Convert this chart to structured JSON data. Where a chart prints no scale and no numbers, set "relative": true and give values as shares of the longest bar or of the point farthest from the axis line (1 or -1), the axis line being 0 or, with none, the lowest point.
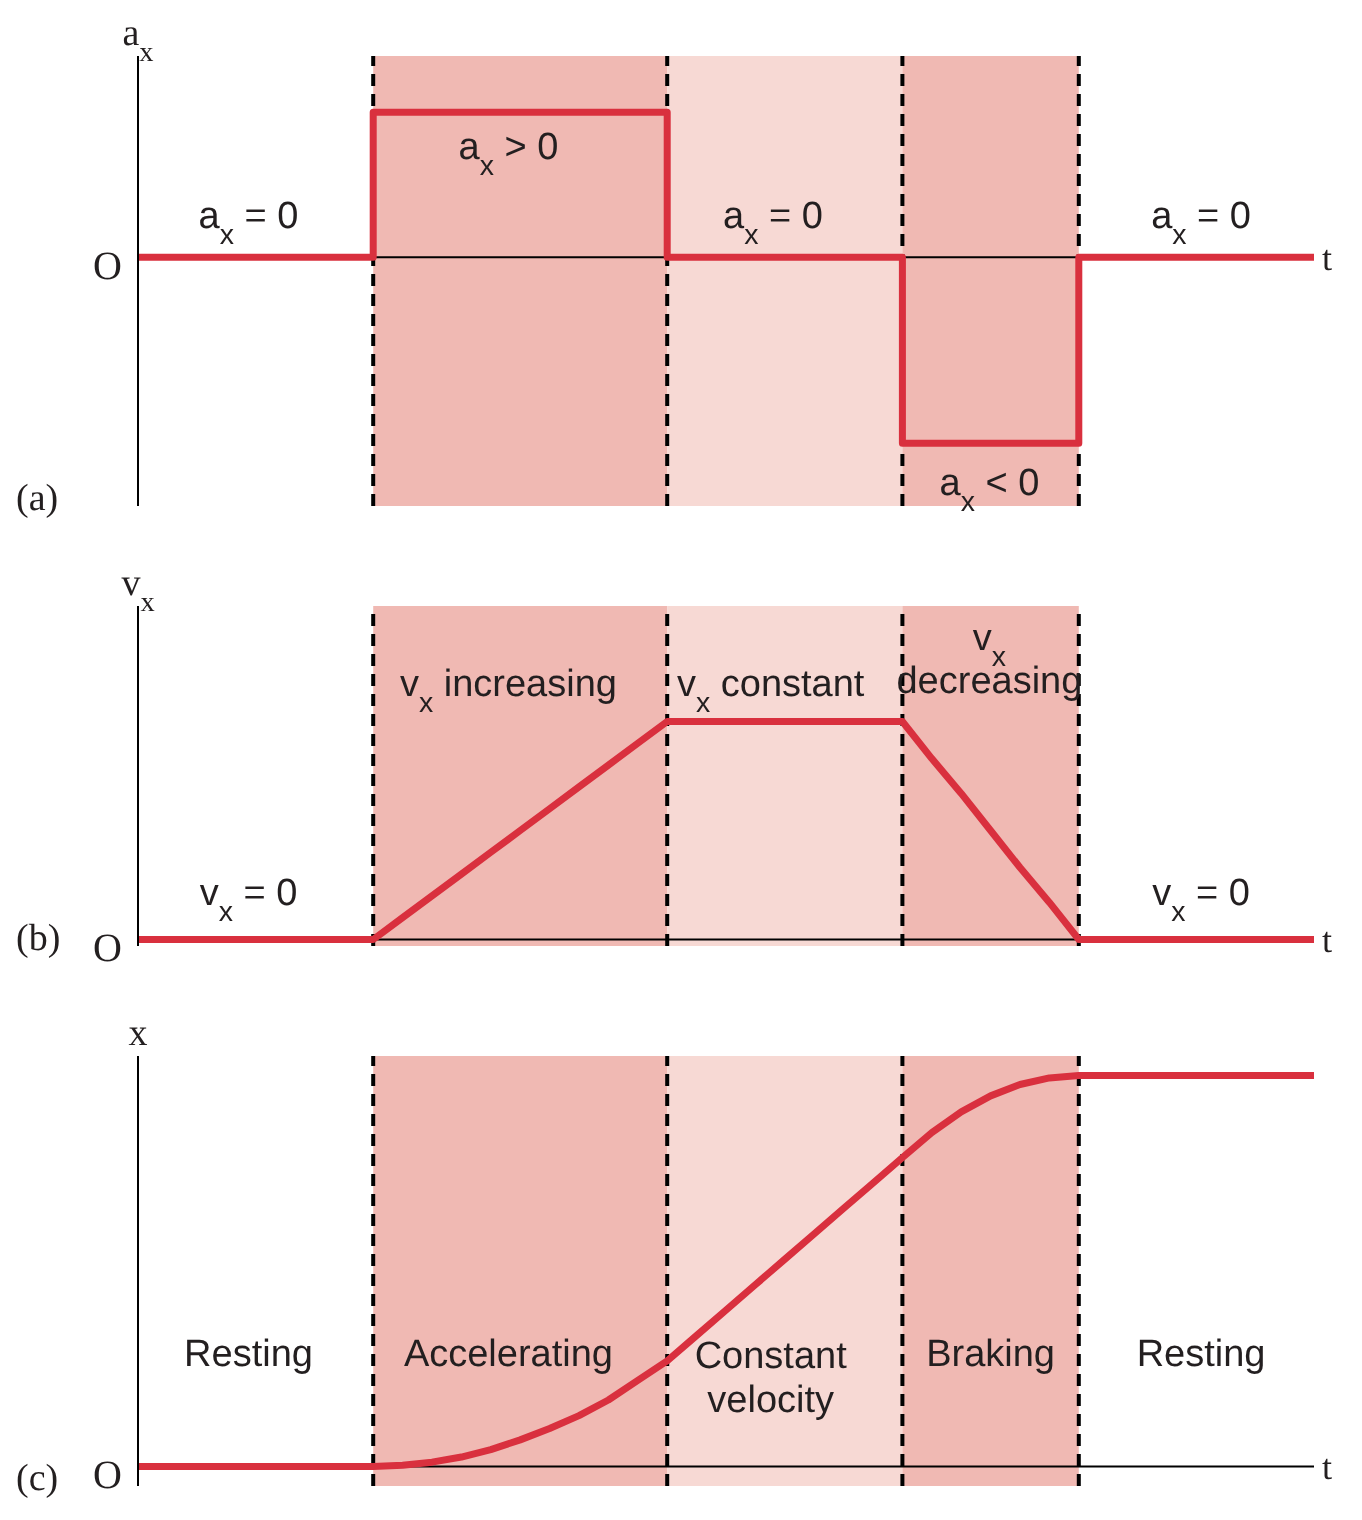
{
  "chart_data": [
    {
      "type": "step",
      "title": "(a)",
      "ylabel": "a$_{x}$",
      "xlabel": "t",
      "relative": true,
      "marker": "none",
      "categories": [
        null,
        null,
        null,
        null,
        null,
        null,
        null,
        null,
        null,
        null,
        null,
        null,
        null,
        null,
        null,
        null,
        null,
        null,
        null,
        null,
        null,
        null,
        null,
        null,
        null,
        null,
        null,
        null,
        null,
        null,
        null,
        null,
        null,
        null,
        null,
        null,
        null,
        null,
        null,
        null,
        null
      ],
      "series": [
        {
          "color": "#d9303e",
          "values": [
            0,
            0,
            0,
            0,
            0,
            0,
            0,
            0,
            0.78,
            0.78,
            0.78,
            0.78,
            0.78,
            0.78,
            0.78,
            0.78,
            0.78,
            0.78,
            0,
            0,
            0,
            0,
            0,
            0,
            0,
            0,
            -1,
            -1,
            -1,
            -1,
            -1,
            -1,
            0,
            0,
            0,
            0,
            0,
            0,
            0,
            0,
            0
          ]
        }
      ],
      "grid": "x",
      "annotations": [
        "O",
        "a$_{x}$ = 0",
        "a$_{x}$ > 0",
        "a$_{x}$ = 0",
        "a$_{x}$ < 0",
        "a$_{x}$ = 0"
      ]
    },
    {
      "type": "line",
      "title": "(b)",
      "ylabel": "v$_{x}$",
      "xlabel": "t",
      "relative": true,
      "marker": "none",
      "categories": [
        null,
        null,
        null,
        null,
        null,
        null,
        null,
        null,
        null,
        null,
        null,
        null,
        null,
        null,
        null,
        null,
        null,
        null,
        null,
        null,
        null,
        null,
        null,
        null,
        null,
        null,
        null,
        null,
        null,
        null,
        null,
        null,
        null,
        null,
        null,
        null,
        null,
        null,
        null,
        null,
        null
      ],
      "series": [
        {
          "color": "#d9303e",
          "values": [
            0,
            0,
            0,
            0,
            0,
            0,
            0,
            0,
            0,
            0.1,
            0.2,
            0.3,
            0.4,
            0.5,
            0.6,
            0.7,
            0.8,
            0.9,
            1,
            1,
            1,
            1,
            1,
            1,
            1,
            1,
            1,
            0.83,
            0.67,
            0.5,
            0.33,
            0.17,
            0,
            0,
            0,
            0,
            0,
            0,
            0,
            0,
            0
          ]
        }
      ],
      "grid": "x",
      "annotations": [
        "O",
        "v$_{x}$ = 0",
        "v$_{x}$ increasing",
        "v$_{x}$ constant",
        "v$_{x}$\ndecreasing",
        "v$_{x}$ = 0"
      ]
    },
    {
      "type": "line",
      "title": "(c)",
      "ylabel": "x",
      "xlabel": "t",
      "relative": true,
      "marker": "none",
      "categories": [
        null,
        null,
        null,
        null,
        null,
        null,
        null,
        null,
        null,
        null,
        null,
        null,
        null,
        null,
        null,
        null,
        null,
        null,
        null,
        null,
        null,
        null,
        null,
        null,
        null,
        null,
        null,
        null,
        null,
        null,
        null,
        null,
        null,
        null,
        null,
        null,
        null,
        null,
        null,
        null,
        null
      ],
      "series": [
        {
          "color": "#d9303e",
          "values": [
            0,
            0,
            0,
            0,
            0,
            0,
            0,
            0,
            0,
            0.003,
            0.011,
            0.024,
            0.043,
            0.068,
            0.097,
            0.13,
            0.17,
            0.22,
            0.27,
            0.335,
            0.4,
            0.465,
            0.53,
            0.595,
            0.66,
            0.725,
            0.79,
            0.854,
            0.907,
            0.948,
            0.977,
            0.994,
            1,
            1,
            1,
            1,
            1,
            1,
            1,
            1,
            1
          ]
        }
      ],
      "grid": "x",
      "annotations": [
        "O",
        "Resting",
        "Accelerating",
        "Constant\nvelocity",
        "Braking",
        "Resting"
      ]
    }
  ]
}
